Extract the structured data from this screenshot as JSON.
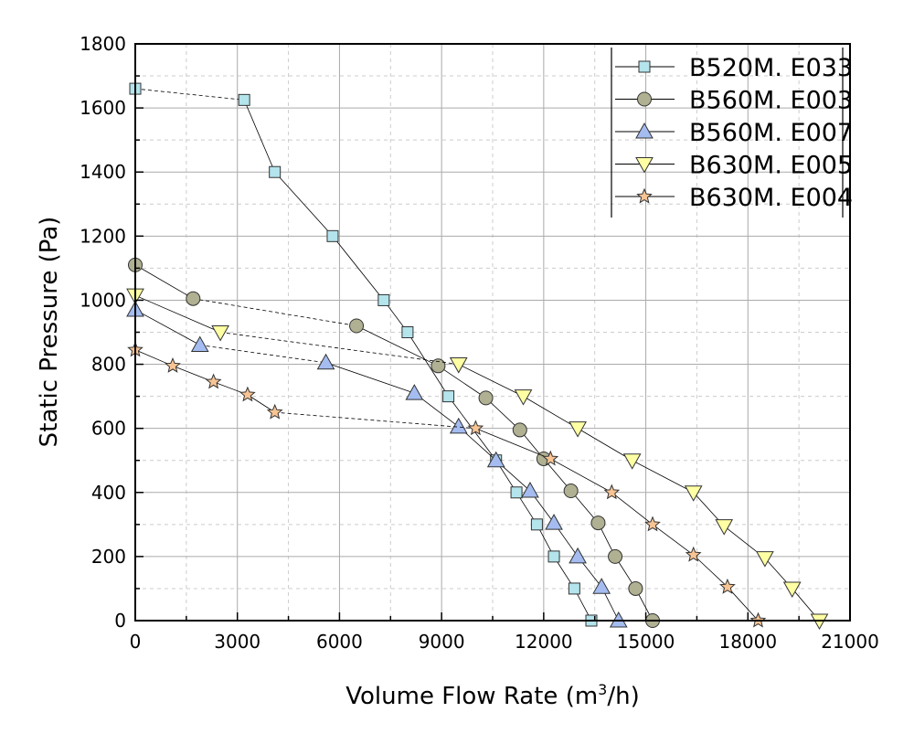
{
  "chart_data": {
    "type": "line",
    "title": "",
    "xlabel": "Volume Flow Rate (m³/h)",
    "xlabel_parts": {
      "pre": "Volume Flow Rate (m",
      "sup": "3",
      "post": "/h)"
    },
    "ylabel": "Static Pressure (Pa)",
    "xlim": [
      0,
      21000
    ],
    "ylim": [
      0,
      1800
    ],
    "xticks": [
      0,
      3000,
      6000,
      9000,
      12000,
      15000,
      18000,
      21000
    ],
    "yticks": [
      0,
      200,
      400,
      600,
      800,
      1000,
      1200,
      1400,
      1600,
      1800
    ],
    "xtick_labels": [
      "0",
      "3000",
      "6000",
      "9000",
      "12000",
      "15000",
      "18000",
      "21000"
    ],
    "ytick_labels": [
      "0",
      "200",
      "400",
      "600",
      "800",
      "1000",
      "1200",
      "1400",
      "1600",
      "1800"
    ],
    "grid": true,
    "legend_position": "top-right",
    "series": [
      {
        "name": "B520M.E033",
        "legend_label": "B520M. E033",
        "marker": "square",
        "color": "#b4e4ec",
        "dashed_segment": 0,
        "x": [
          0,
          3200,
          4100,
          5800,
          7300,
          8000,
          9200,
          10600,
          11200,
          11800,
          12300,
          12900,
          13400
        ],
        "y": [
          1660,
          1625,
          1400,
          1200,
          1000,
          900,
          700,
          500,
          400,
          300,
          200,
          100,
          0
        ]
      },
      {
        "name": "B560M.E003",
        "legend_label": "B560M. E003",
        "marker": "circle",
        "color": "#b0b092",
        "dashed_segment": 1,
        "x": [
          0,
          1700,
          6500,
          8900,
          10300,
          11300,
          12000,
          12800,
          13600,
          14100,
          14700,
          15200
        ],
        "y": [
          1110,
          1005,
          920,
          795,
          695,
          595,
          505,
          405,
          305,
          200,
          100,
          0
        ]
      },
      {
        "name": "B560M.E007",
        "legend_label": "B560M. E007",
        "marker": "triangle-up",
        "color": "#a4bcf0",
        "dashed_segment": 1,
        "x": [
          0,
          1900,
          5600,
          8200,
          9500,
          10600,
          11600,
          12300,
          13000,
          13700,
          14200
        ],
        "y": [
          970,
          860,
          805,
          710,
          605,
          500,
          405,
          305,
          200,
          105,
          0
        ]
      },
      {
        "name": "B630M.E005",
        "legend_label": "B630M. E005",
        "marker": "triangle-down",
        "color": "#ffffa4",
        "dashed_segment": 1,
        "x": [
          0,
          2500,
          9500,
          11400,
          13000,
          14600,
          16400,
          17300,
          18500,
          19300,
          20100
        ],
        "y": [
          1015,
          900,
          800,
          700,
          600,
          500,
          400,
          295,
          195,
          100,
          0
        ]
      },
      {
        "name": "B630M.E004",
        "legend_label": "B630M. E004",
        "marker": "star",
        "color": "#f8c494",
        "dashed_segment": 4,
        "x": [
          0,
          1100,
          2300,
          3300,
          4100,
          10000,
          12200,
          14000,
          15200,
          16400,
          17400,
          18300
        ],
        "y": [
          845,
          795,
          745,
          705,
          650,
          600,
          505,
          400,
          300,
          205,
          105,
          0
        ]
      }
    ]
  }
}
